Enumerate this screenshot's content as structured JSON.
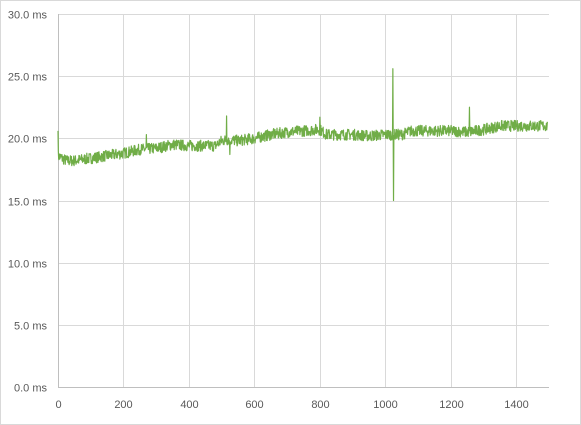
{
  "chart_data": {
    "type": "line",
    "title": "",
    "xlabel": "",
    "ylabel": "",
    "xlim": [
      0,
      1500
    ],
    "ylim": [
      0,
      30
    ],
    "x_ticks": [
      0,
      200,
      400,
      600,
      800,
      1000,
      1200,
      1400
    ],
    "x_tick_labels": [
      "0",
      "200",
      "400",
      "600",
      "800",
      "1000",
      "1200",
      "1400"
    ],
    "y_ticks": [
      0,
      5,
      10,
      15,
      20,
      25,
      30
    ],
    "y_tick_labels": [
      "0.0 ms",
      "5.0 ms",
      "10.0 ms",
      "15.0 ms",
      "20.0 ms",
      "25.0 ms",
      "30.0 ms"
    ],
    "grid": "major both axes",
    "legend": "none",
    "series_color": "#70ad47",
    "grid_color": "#d9d9d9",
    "axis_color": "#bfbfbf",
    "series": [
      {
        "x": [
          0,
          25,
          50,
          100,
          150,
          200,
          250,
          300,
          350,
          400,
          450,
          480,
          500,
          520,
          550,
          600,
          650,
          700,
          750,
          790,
          800,
          820,
          850,
          900,
          950,
          1000,
          1020,
          1050,
          1080,
          1100,
          1150,
          1200,
          1250,
          1300,
          1350,
          1400,
          1450,
          1495
        ],
        "y": [
          18.6,
          18.2,
          18.2,
          18.4,
          18.6,
          18.8,
          19.1,
          19.2,
          19.5,
          19.4,
          19.4,
          19.4,
          19.8,
          19.9,
          19.8,
          20.0,
          20.3,
          20.5,
          20.6,
          20.7,
          20.7,
          20.3,
          20.3,
          20.3,
          20.2,
          20.3,
          20.3,
          20.3,
          20.6,
          20.6,
          20.6,
          20.6,
          20.5,
          20.7,
          21.0,
          21.0,
          21.0,
          21.0
        ],
        "spikes": [
          {
            "x": 0,
            "y": 20.6
          },
          {
            "x": 270,
            "y": 20.3
          },
          {
            "x": 515,
            "y": 21.8
          },
          {
            "x": 525,
            "y": 18.7
          },
          {
            "x": 800,
            "y": 21.7
          },
          {
            "x": 1023,
            "y": 25.6
          },
          {
            "x": 1025,
            "y": 15.0
          },
          {
            "x": 1257,
            "y": 22.5
          }
        ]
      }
    ]
  }
}
